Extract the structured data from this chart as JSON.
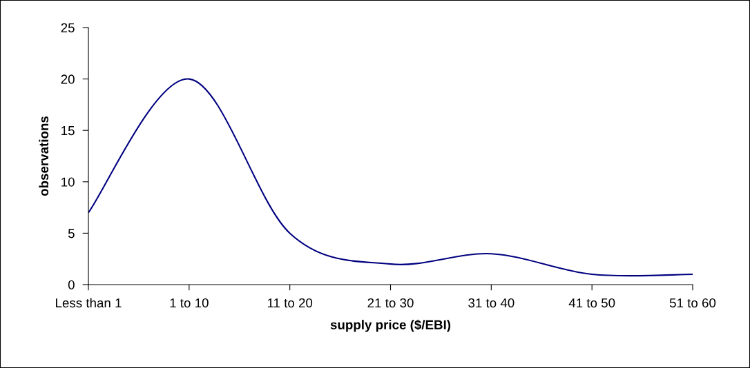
{
  "chart_data": {
    "type": "line",
    "xlabel": "supply price ($/EBI)",
    "ylabel": "observations",
    "categories": [
      "Less than 1",
      "1 to 10",
      "11 to 20",
      "21 to 30",
      "31 to 40",
      "41 to 50",
      "51 to 60"
    ],
    "series": [
      {
        "color": "#000080",
        "values": [
          7,
          20,
          5,
          2,
          3,
          1,
          1
        ]
      }
    ],
    "ylim": [
      0,
      25
    ],
    "yticks": [
      0,
      5,
      10,
      15,
      20,
      25
    ],
    "grid": false,
    "legend": false,
    "marker": "none",
    "line_style": "solid"
  }
}
